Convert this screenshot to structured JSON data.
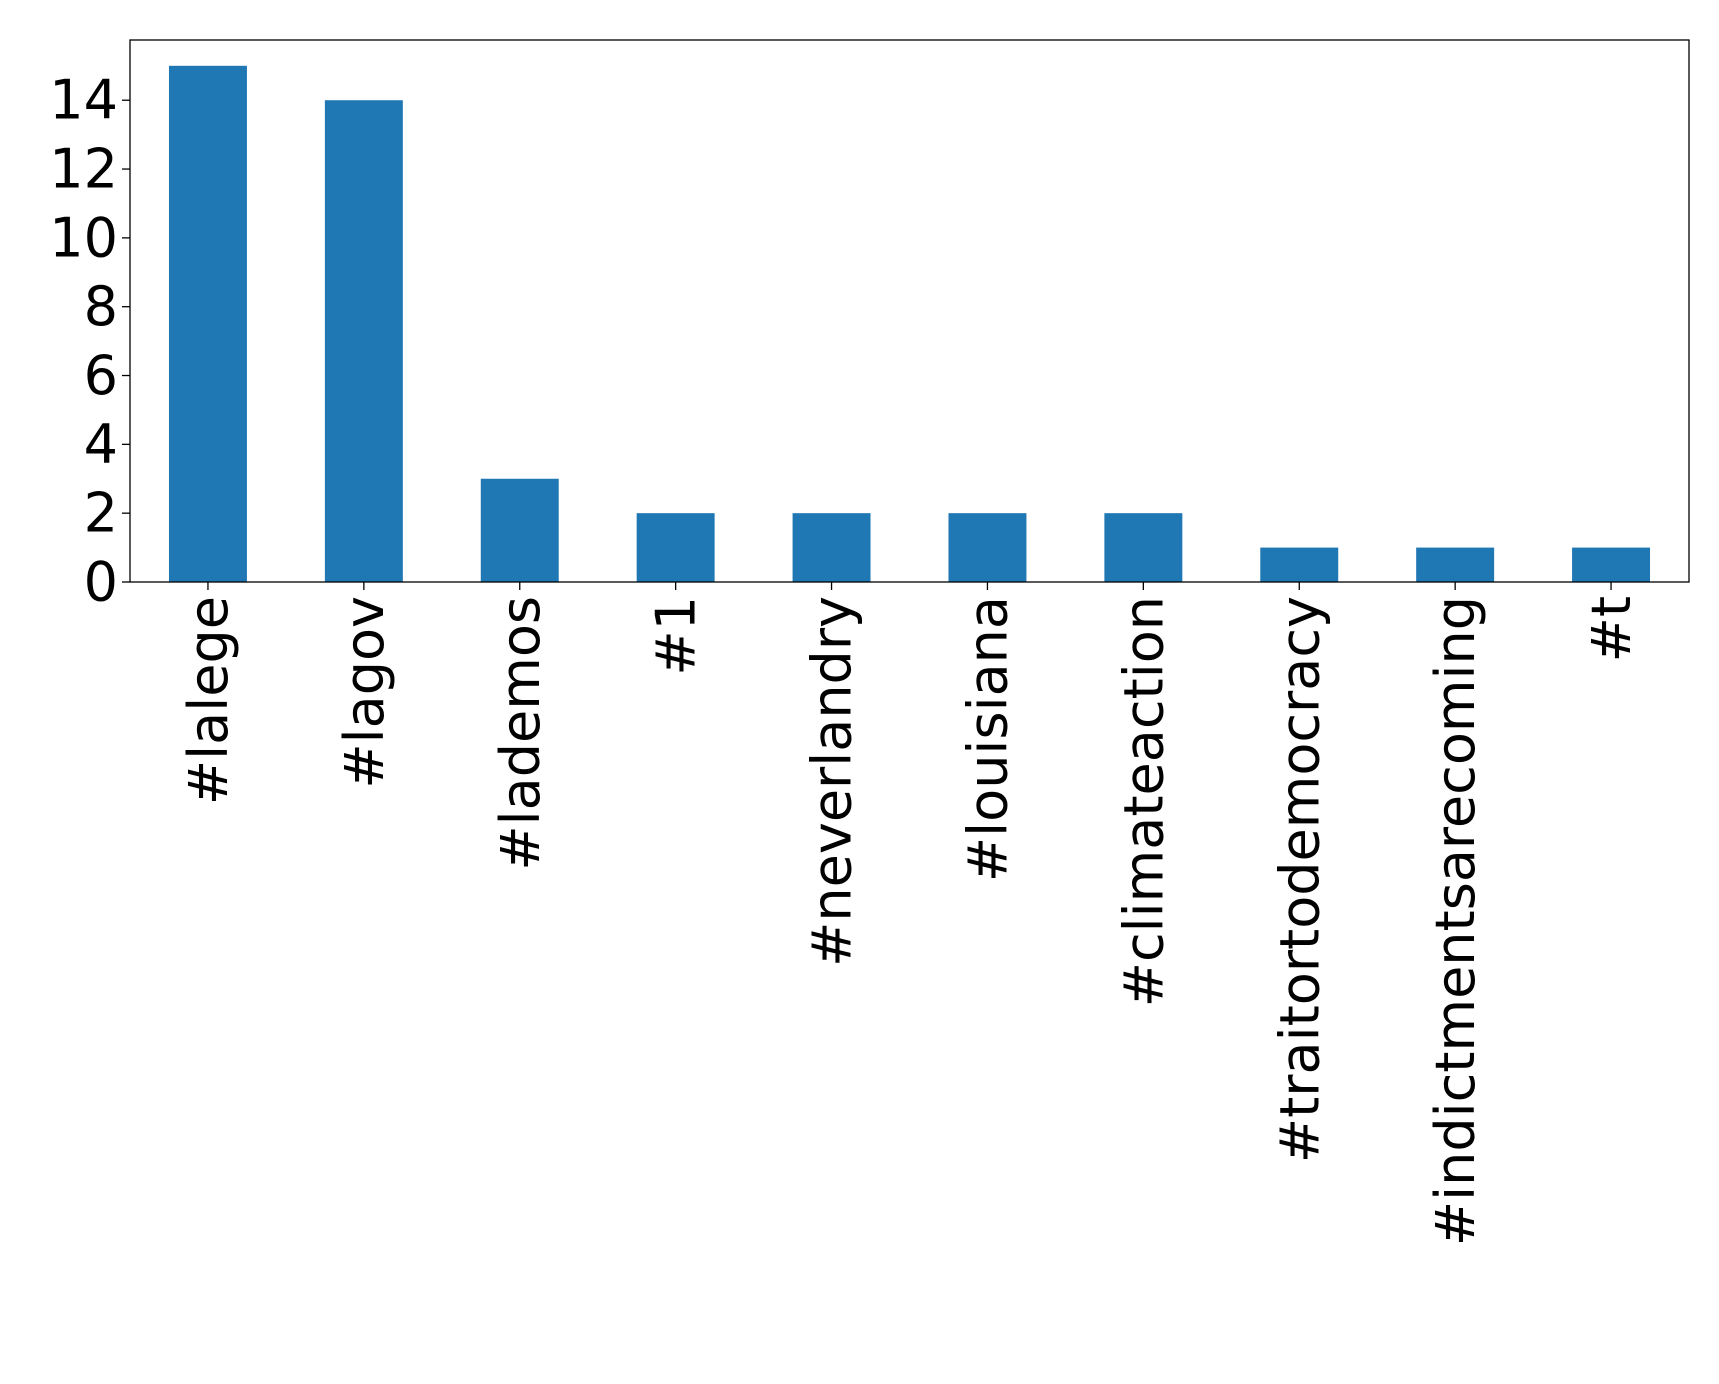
{
  "chart_data": {
    "type": "bar",
    "title": "",
    "xlabel": "",
    "ylabel": "",
    "categories": [
      "#lalege",
      "#lagov",
      "#lademos",
      "#1",
      "#neverlandry",
      "#louisiana",
      "#climateaction",
      "#traitortodemocracy",
      "#indictmentsarecoming",
      "#t"
    ],
    "values": [
      15,
      14,
      3,
      2,
      2,
      2,
      2,
      1,
      1,
      1
    ],
    "ylim": [
      0,
      15.75
    ],
    "yticks": [
      0,
      2,
      4,
      6,
      8,
      10,
      12,
      14
    ],
    "bar_color": "#1f77b4",
    "grid": false,
    "legend": "none"
  }
}
